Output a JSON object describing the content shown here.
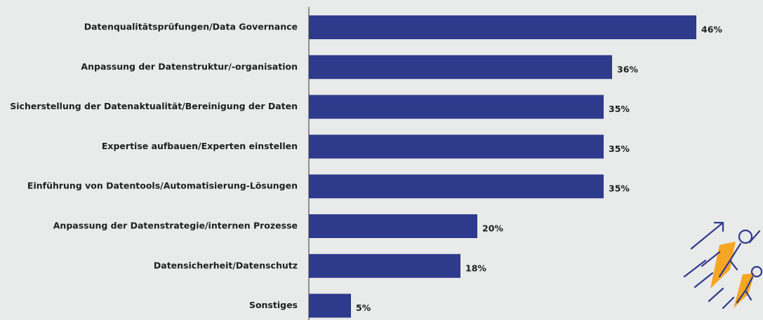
{
  "chart_data": {
    "type": "bar",
    "orientation": "horizontal",
    "categories": [
      "Datenqualitätsprüfungen/Data Governance",
      "Anpassung der Datenstruktur/-organisation",
      "Sicherstellung der Datenaktualität/Bereinigung der Daten",
      "Expertise aufbauen/Experten einstellen",
      "Einführung von Datentools/Automatisierung-Lösungen",
      "Anpassung der Datenstrategie/internen Prozesse",
      "Datensicherheit/Datenschutz",
      "Sonstiges"
    ],
    "values": [
      46,
      36,
      35,
      35,
      35,
      20,
      18,
      5
    ],
    "value_labels": [
      "46%",
      "36%",
      "35%",
      "35%",
      "35%",
      "20%",
      "18%",
      "5%"
    ],
    "color": "#2e3a8c"
  }
}
